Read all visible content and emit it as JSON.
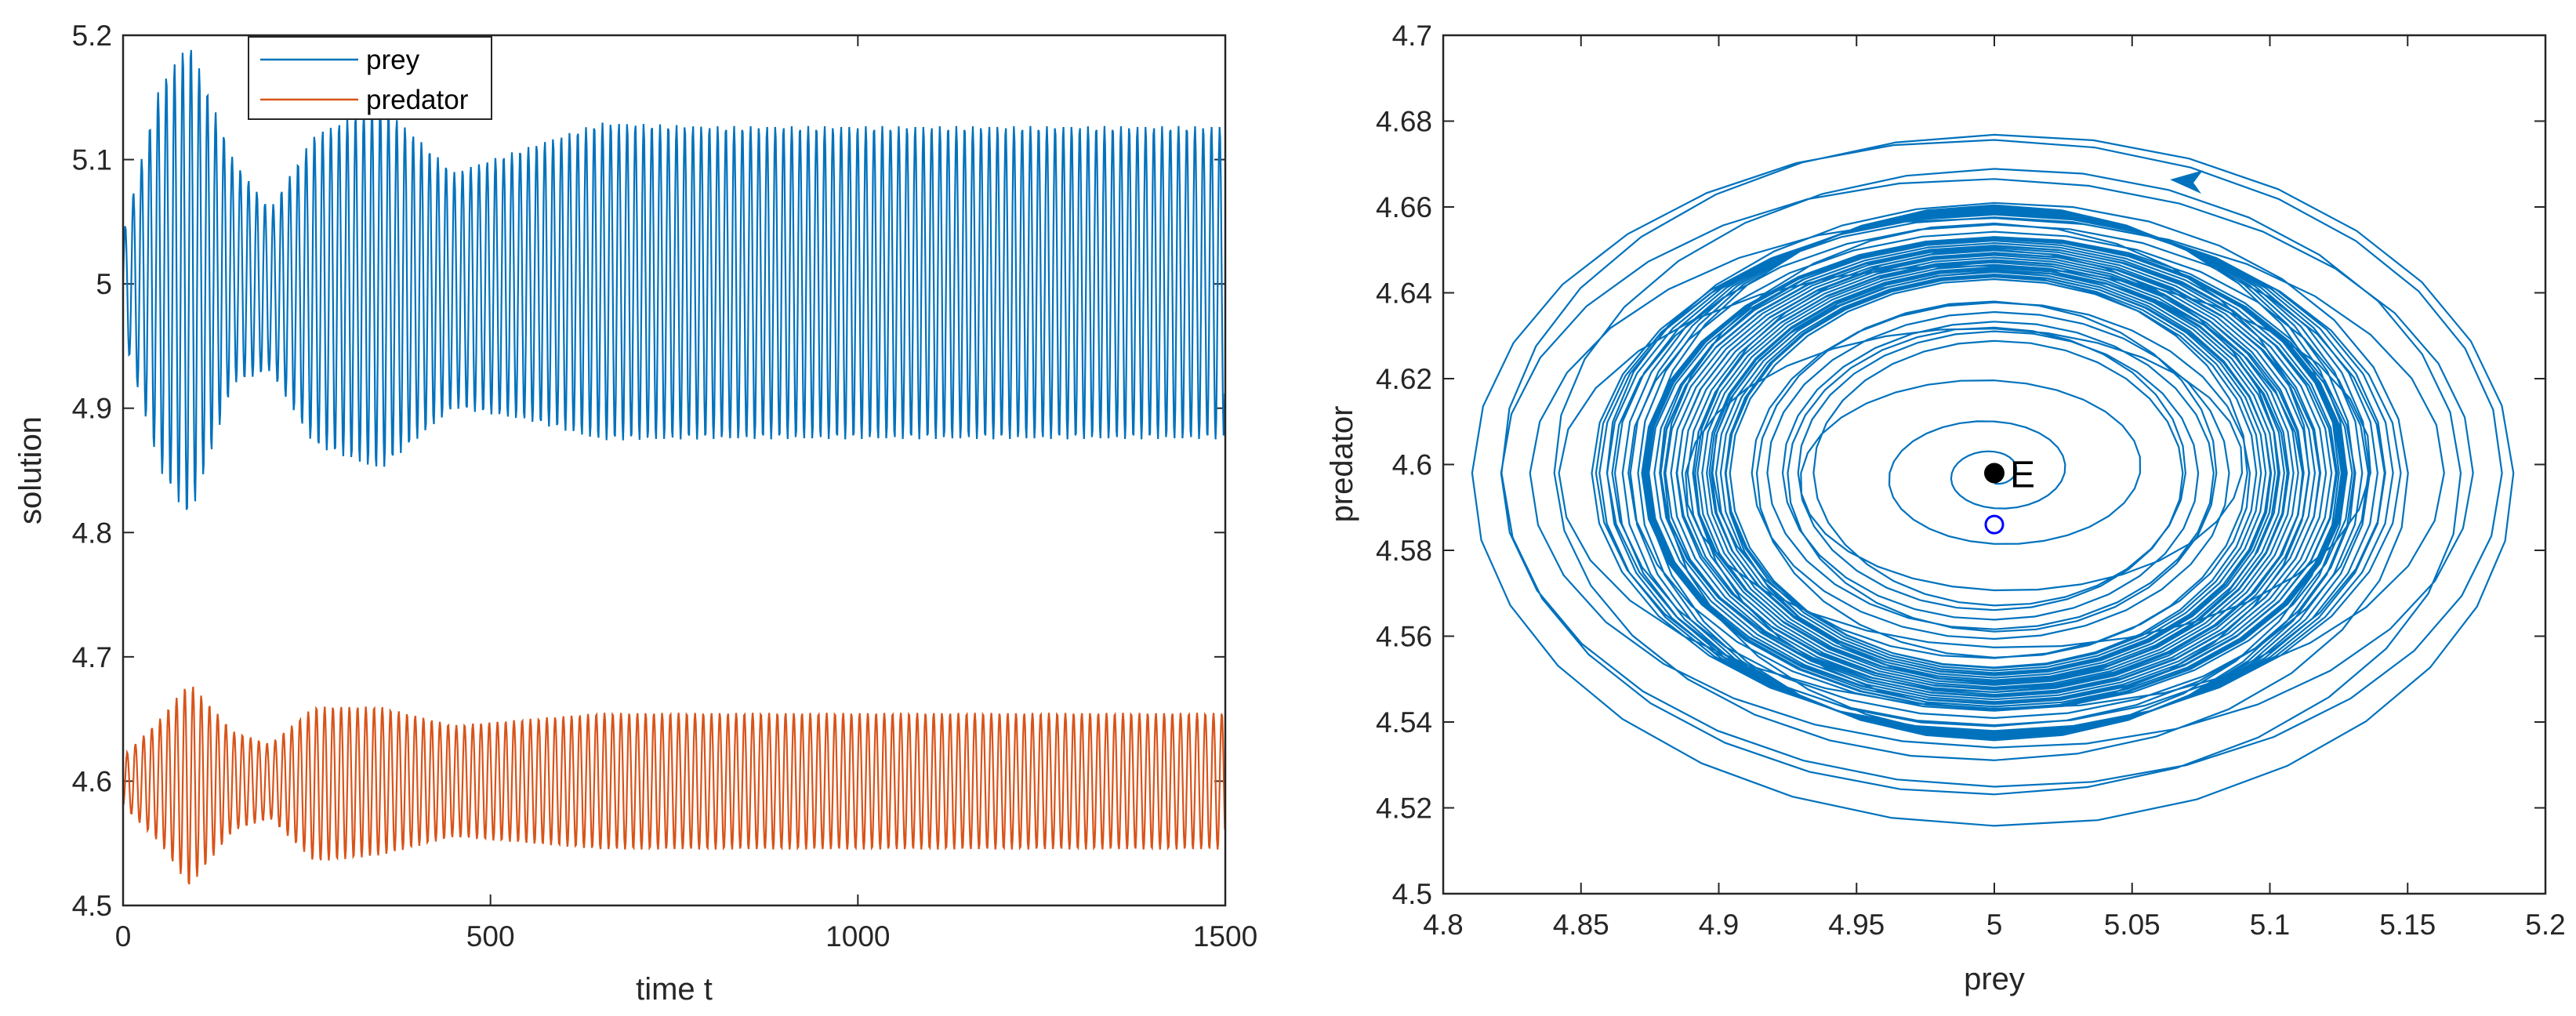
{
  "colors": {
    "prey": "#0072BD",
    "predator": "#D95319",
    "axis": "#262626",
    "equilibrium": "#000000",
    "start": "#0000FF"
  },
  "chart_data": [
    {
      "type": "line",
      "subtype": "time-series",
      "title": "",
      "xlabel": "time t",
      "ylabel": "solution",
      "xlim": [
        0,
        1500
      ],
      "ylim": [
        4.5,
        5.2
      ],
      "xticks": [
        0,
        500,
        1000,
        1500
      ],
      "yticks": [
        4.5,
        4.6,
        4.7,
        4.8,
        4.9,
        5.0,
        5.1,
        5.2
      ],
      "xtick_labels": [
        "0",
        "500",
        "1000",
        "1500"
      ],
      "ytick_labels": [
        "4.5",
        "4.6",
        "4.7",
        "4.8",
        "4.9",
        "5",
        "5.1",
        "5.2"
      ],
      "legend": {
        "position": "top-left",
        "entries": [
          "prey",
          "predator"
        ]
      },
      "model": {
        "equilibrium": [
          5.0,
          4.598
        ],
        "initial": [
          5.0,
          4.586
        ],
        "period": 11.2,
        "prey_limit_amplitude": 0.126,
        "predator_limit_amplitude": 0.055
      },
      "series": [
        {
          "name": "prey",
          "color": "#0072BD",
          "envelope_max": [
            [
              0,
              5.04
            ],
            [
              50,
              5.16
            ],
            [
              90,
              5.195
            ],
            [
              150,
              5.1
            ],
            [
              200,
              5.06
            ],
            [
              260,
              5.12
            ],
            [
              350,
              5.145
            ],
            [
              450,
              5.09
            ],
            [
              550,
              5.11
            ],
            [
              650,
              5.13
            ],
            [
              800,
              5.127
            ],
            [
              1500,
              5.127
            ]
          ],
          "envelope_min": [
            [
              0,
              4.96
            ],
            [
              50,
              4.85
            ],
            [
              90,
              4.81
            ],
            [
              150,
              4.92
            ],
            [
              200,
              4.93
            ],
            [
              260,
              4.87
            ],
            [
              350,
              4.85
            ],
            [
              450,
              4.9
            ],
            [
              550,
              4.89
            ],
            [
              650,
              4.874
            ],
            [
              800,
              4.875
            ],
            [
              1500,
              4.875
            ]
          ]
        },
        {
          "name": "predator",
          "color": "#D95319",
          "envelope_max": [
            [
              0,
              4.62
            ],
            [
              50,
              4.65
            ],
            [
              90,
              4.68
            ],
            [
              150,
              4.64
            ],
            [
              200,
              4.63
            ],
            [
              260,
              4.66
            ],
            [
              350,
              4.66
            ],
            [
              450,
              4.645
            ],
            [
              550,
              4.65
            ],
            [
              650,
              4.655
            ],
            [
              1500,
              4.655
            ]
          ],
          "envelope_min": [
            [
              0,
              4.58
            ],
            [
              50,
              4.55
            ],
            [
              90,
              4.515
            ],
            [
              150,
              4.56
            ],
            [
              200,
              4.57
            ],
            [
              260,
              4.535
            ],
            [
              350,
              4.54
            ],
            [
              450,
              4.555
            ],
            [
              550,
              4.55
            ],
            [
              650,
              4.545
            ],
            [
              1500,
              4.545
            ]
          ]
        }
      ]
    },
    {
      "type": "line",
      "subtype": "phase-portrait",
      "title": "",
      "xlabel": "prey",
      "ylabel": "predator",
      "xlim": [
        4.8,
        5.2
      ],
      "ylim": [
        4.5,
        4.7
      ],
      "xticks": [
        4.8,
        4.85,
        4.9,
        4.95,
        5.0,
        5.05,
        5.1,
        5.15,
        5.2
      ],
      "yticks": [
        4.5,
        4.52,
        4.54,
        4.56,
        4.58,
        4.6,
        4.62,
        4.64,
        4.66,
        4.68,
        4.7
      ],
      "xtick_labels": [
        "4.8",
        "4.85",
        "4.9",
        "4.95",
        "5",
        "5.05",
        "5.1",
        "5.15",
        "5.2"
      ],
      "ytick_labels": [
        "4.5",
        "4.52",
        "4.54",
        "4.56",
        "4.58",
        "4.6",
        "4.62",
        "4.64",
        "4.66",
        "4.68",
        "4.7"
      ],
      "equilibrium": {
        "label": "E",
        "prey": 5.0,
        "predator": 4.598
      },
      "initial_point": {
        "prey": 5.0,
        "predator": 4.586
      },
      "limit_cycle": {
        "prey_range": [
          4.874,
          5.127
        ],
        "predator_range": [
          4.544,
          4.656
        ]
      },
      "outer_orbit": {
        "prey_range": [
          4.807,
          5.197
        ],
        "predator_range": [
          4.514,
          4.682
        ]
      },
      "arrow": {
        "prey": 5.07,
        "predator": 4.666,
        "direction": "counterclockwise"
      }
    }
  ]
}
